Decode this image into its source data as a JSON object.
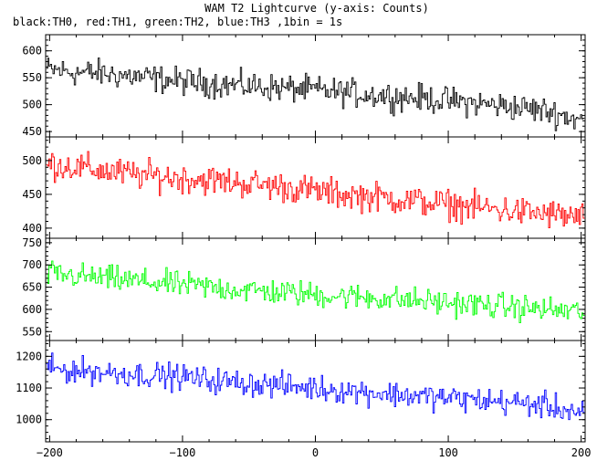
{
  "chart_data": {
    "type": "line",
    "title": "WAM T2 Lightcurve (y-axis: Counts)",
    "subtitle": "black:TH0, red:TH1, green:TH2, blue:TH3 ,1bin = 1s",
    "xlabel": "",
    "ylabel": "",
    "xlim": [
      -203,
      203
    ],
    "x_ticks": [
      -200,
      -100,
      0,
      100,
      200
    ],
    "x_tick_labels": [
      "−200",
      "−100",
      "0",
      "100",
      "200"
    ],
    "grid": false,
    "bin_seconds": 1,
    "panels": [
      {
        "color": "#000000",
        "ylim": [
          440,
          630
        ],
        "y_ticks": [
          450,
          500,
          550,
          600
        ],
        "y_tick_labels": [
          "450",
          "500",
          "550",
          "600"
        ],
        "series": [
          {
            "x": [
              -200,
              -180,
              -160,
              -140,
              -120,
              -100,
              -80,
              -60,
              -40,
              -20,
              0,
              20,
              40,
              60,
              80,
              100,
              120,
              140,
              160,
              180,
              200
            ],
            "values": [
              565,
              560,
              558,
              553,
              548,
              543,
              540,
              536,
              533,
              530,
              527,
              523,
              519,
              515,
              512,
              507,
              503,
              498,
              493,
              485,
              470
            ],
            "noise": 22
          }
        ]
      },
      {
        "color": "#ff0000",
        "ylim": [
          385,
          535
        ],
        "y_ticks": [
          400,
          450,
          500
        ],
        "y_tick_labels": [
          "400",
          "450",
          "500"
        ],
        "series": [
          {
            "x": [
              -200,
              -180,
              -160,
              -140,
              -120,
              -100,
              -80,
              -60,
              -40,
              -20,
              0,
              20,
              40,
              60,
              80,
              100,
              120,
              140,
              160,
              180,
              200
            ],
            "values": [
              495,
              490,
              485,
              480,
              477,
              474,
              471,
              468,
              464,
              460,
              455,
              450,
              447,
              443,
              439,
              435,
              431,
              427,
              423,
              420,
              415
            ],
            "noise": 19
          }
        ]
      },
      {
        "color": "#00ff00",
        "ylim": [
          530,
          760
        ],
        "y_ticks": [
          550,
          600,
          650,
          700,
          750
        ],
        "y_tick_labels": [
          "550",
          "600",
          "650",
          "700",
          "750"
        ],
        "series": [
          {
            "x": [
              -200,
              -180,
              -160,
              -140,
              -120,
              -100,
              -80,
              -60,
              -40,
              -20,
              0,
              20,
              40,
              60,
              80,
              100,
              120,
              140,
              160,
              180,
              200
            ],
            "values": [
              680,
              675,
              670,
              665,
              660,
              655,
              650,
              645,
              641,
              637,
              633,
              630,
              627,
              623,
              619,
              615,
              611,
              607,
              603,
              598,
              595
            ],
            "noise": 25
          }
        ]
      },
      {
        "color": "#0000ff",
        "ylim": [
          930,
          1250
        ],
        "y_ticks": [
          1000,
          1100,
          1200
        ],
        "y_tick_labels": [
          "1000",
          "1100",
          "1200"
        ],
        "series": [
          {
            "x": [
              -200,
              -180,
              -160,
              -140,
              -120,
              -100,
              -80,
              -60,
              -40,
              -20,
              0,
              20,
              40,
              60,
              80,
              100,
              120,
              140,
              160,
              180,
              200
            ],
            "values": [
              1160,
              1155,
              1150,
              1145,
              1140,
              1135,
              1125,
              1118,
              1112,
              1106,
              1100,
              1093,
              1087,
              1080,
              1074,
              1068,
              1062,
              1057,
              1050,
              1040,
              1020
            ],
            "noise": 35
          }
        ]
      }
    ]
  }
}
